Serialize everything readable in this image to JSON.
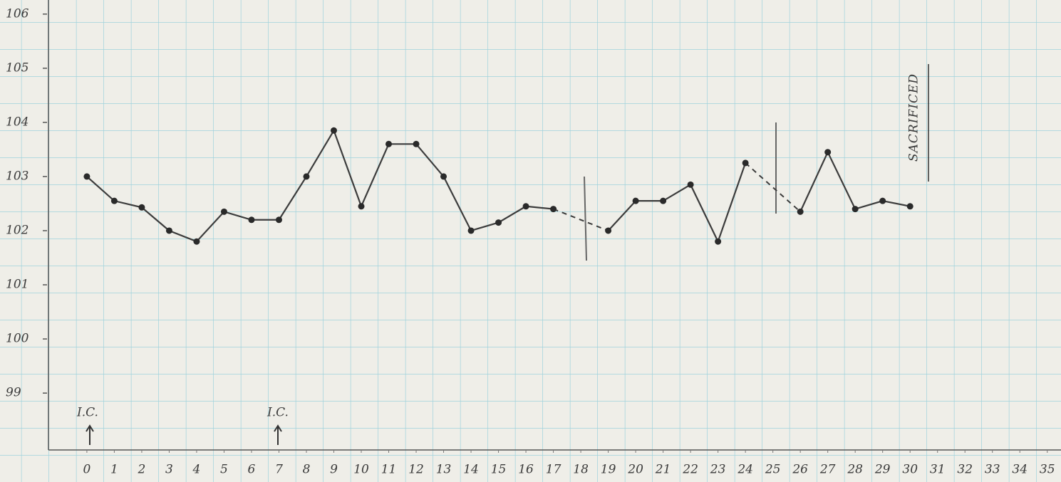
{
  "chart_data": {
    "type": "line",
    "x": [
      0,
      1,
      2,
      3,
      4,
      5,
      6,
      7,
      8,
      9,
      10,
      11,
      12,
      13,
      14,
      15,
      16,
      17,
      18,
      19,
      20,
      21,
      22,
      23,
      24,
      25,
      26,
      27,
      28,
      29,
      30
    ],
    "series": [
      {
        "color": "#3c3c3c",
        "values": [
          103.0,
          102.55,
          102.43,
          102.0,
          101.8,
          102.35,
          102.2,
          102.2,
          103.0,
          103.85,
          102.45,
          103.6,
          103.6,
          103.0,
          102.0,
          102.15,
          102.45,
          102.4,
          null,
          102.0,
          102.55,
          102.55,
          102.85,
          101.8,
          103.25,
          null,
          102.35,
          103.45,
          102.4,
          102.55,
          102.45
        ]
      }
    ],
    "xlim": [
      -1.4,
      35.5
    ],
    "ylim": [
      97.95,
      106.26
    ],
    "xticks": [
      0,
      1,
      2,
      3,
      4,
      5,
      6,
      7,
      8,
      9,
      10,
      11,
      12,
      13,
      14,
      15,
      16,
      17,
      18,
      19,
      20,
      21,
      22,
      23,
      24,
      25,
      26,
      27,
      28,
      29,
      30,
      31,
      32,
      33,
      34,
      35
    ],
    "yticks": [
      99,
      100,
      101,
      102,
      103,
      104,
      105,
      106
    ],
    "annotations": [
      "I.C.",
      "I.C.",
      "SACRIFICED"
    ]
  }
}
